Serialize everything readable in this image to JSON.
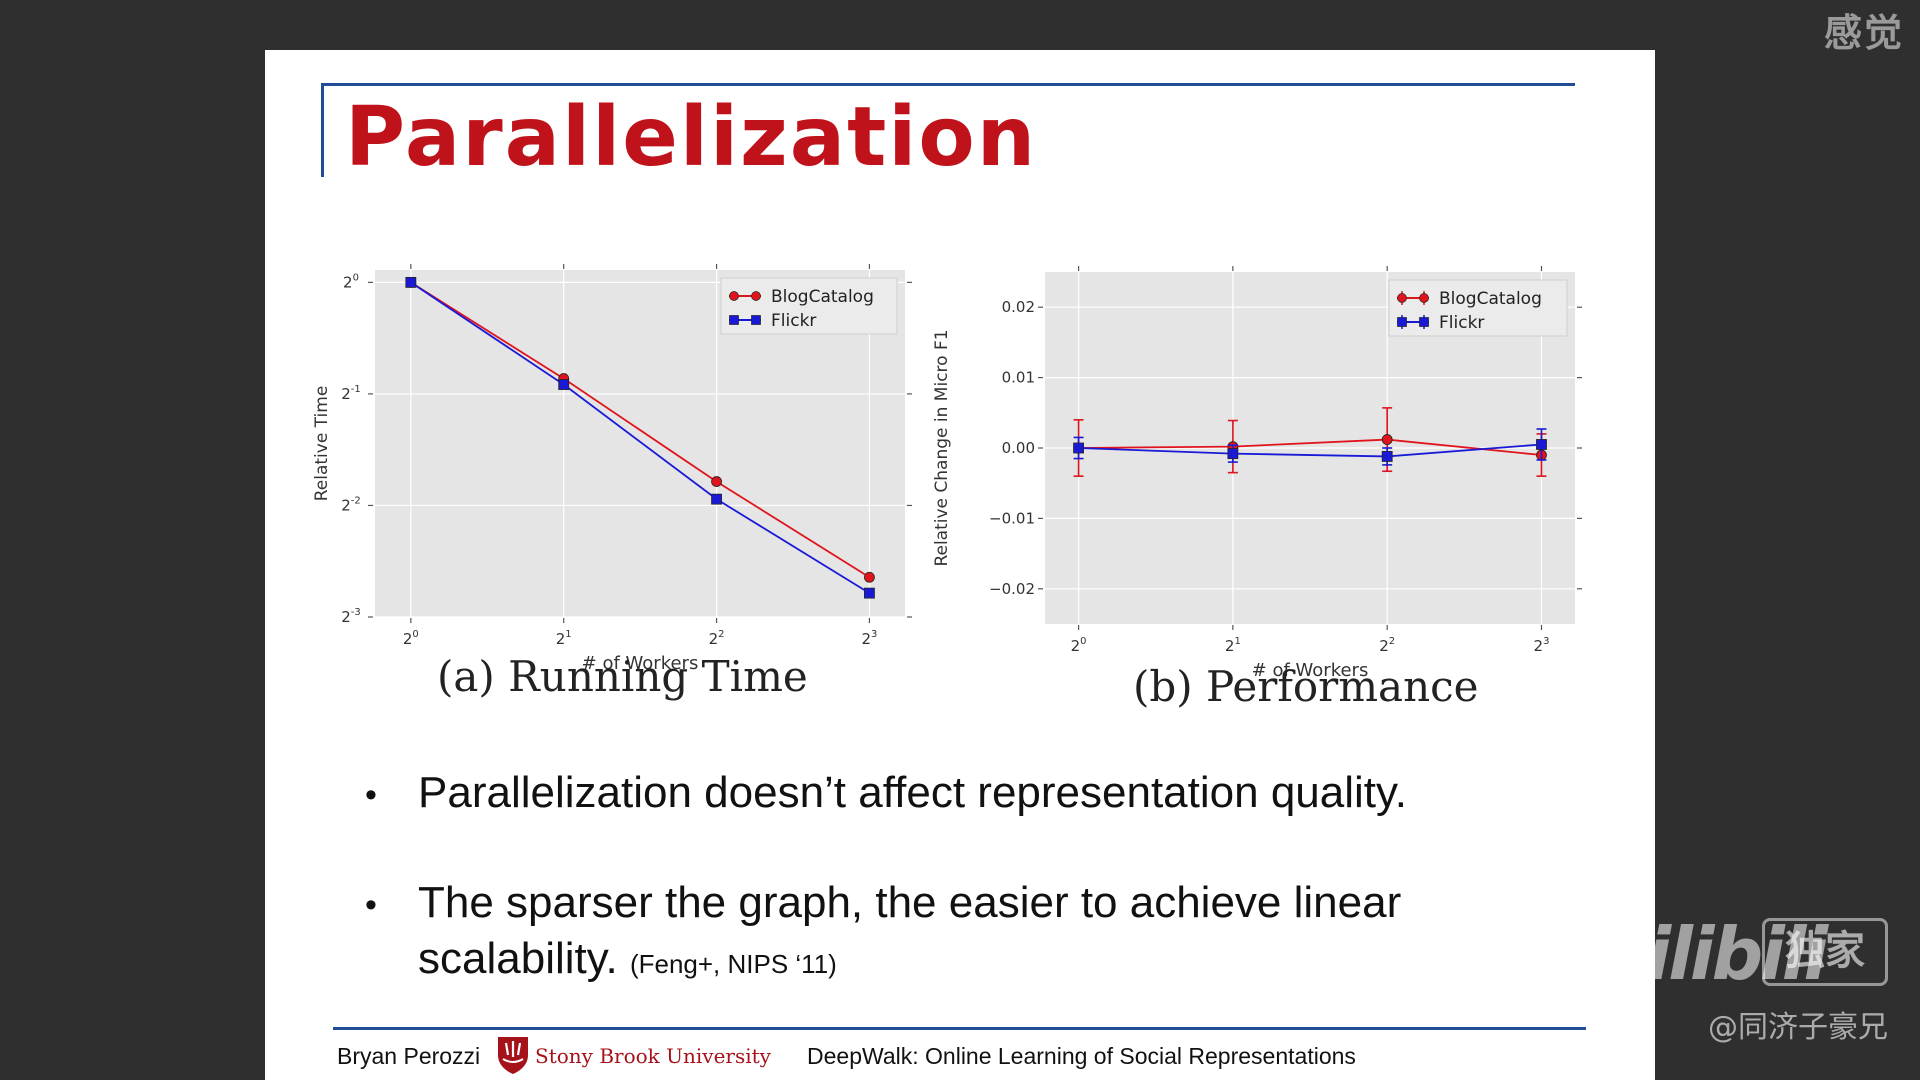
{
  "corner_text": "感觉",
  "slide": {
    "title": "Parallelization",
    "captions": [
      "(a) Running Time",
      "(b) Performance"
    ],
    "bullets": [
      {
        "text": "Parallelization doesn’t affect representation quality.",
        "ref": ""
      },
      {
        "text": "The sparser the graph, the easier to achieve linear scalability.",
        "ref": "(Feng+, NIPS ‘11)"
      }
    ],
    "footer": {
      "author": "Bryan Perozzi",
      "university_main": "Stony Brook",
      "university_suffix": "University",
      "paper_title": "DeepWalk: Online Learning of Social Representations"
    }
  },
  "watermark": {
    "logo": "bilibili",
    "badge": "独家",
    "user": "@同济子豪兄"
  },
  "colors": {
    "title": "#c0121a",
    "accent_line": "#1f4e96",
    "blogcatalog": "#e0141c",
    "flickr": "#1a1ad6",
    "plot_bg": "#e5e5e5"
  },
  "chart_data": [
    {
      "type": "line",
      "title": "",
      "xlabel": "# of Workers",
      "ylabel": "Relative Time",
      "x_scale": "log2",
      "y_scale": "log2",
      "x": [
        1,
        2,
        4,
        8
      ],
      "xticks": [
        1,
        2,
        4,
        8
      ],
      "yticks": [
        1,
        0.5,
        0.25,
        0.125
      ],
      "xlim": [
        0.85,
        9.4
      ],
      "ylim": [
        0.125,
        1.08
      ],
      "grid": true,
      "legend": "top-right",
      "series": [
        {
          "name": "BlogCatalog",
          "marker": "circle",
          "values": [
            1.0,
            0.55,
            0.29,
            0.16
          ]
        },
        {
          "name": "Flickr",
          "marker": "square",
          "values": [
            1.0,
            0.53,
            0.26,
            0.145
          ]
        }
      ]
    },
    {
      "type": "line",
      "title": "",
      "xlabel": "# of Workers",
      "ylabel": "Relative Change in Micro F1",
      "x_scale": "log2",
      "x": [
        1,
        2,
        4,
        8
      ],
      "xticks": [
        1,
        2,
        4,
        8
      ],
      "yticks": [
        0.02,
        0.01,
        0.0,
        -0.01,
        -0.02
      ],
      "ytick_labels": [
        "0.02",
        "0.01",
        "0.00",
        "−0.01",
        "−0.02"
      ],
      "xlim": [
        0.86,
        9.3
      ],
      "ylim": [
        -0.025,
        0.025
      ],
      "grid": true,
      "legend": "top-right",
      "error_bars": true,
      "series": [
        {
          "name": "BlogCatalog",
          "marker": "circle",
          "values": [
            0.0,
            0.0002,
            0.0012,
            -0.001
          ],
          "errors": [
            0.004,
            0.0037,
            0.0045,
            0.003
          ]
        },
        {
          "name": "Flickr",
          "marker": "square",
          "values": [
            0.0,
            -0.0008,
            -0.0012,
            0.0005
          ],
          "errors": [
            0.0015,
            0.0012,
            0.0012,
            0.0022
          ]
        }
      ]
    }
  ]
}
